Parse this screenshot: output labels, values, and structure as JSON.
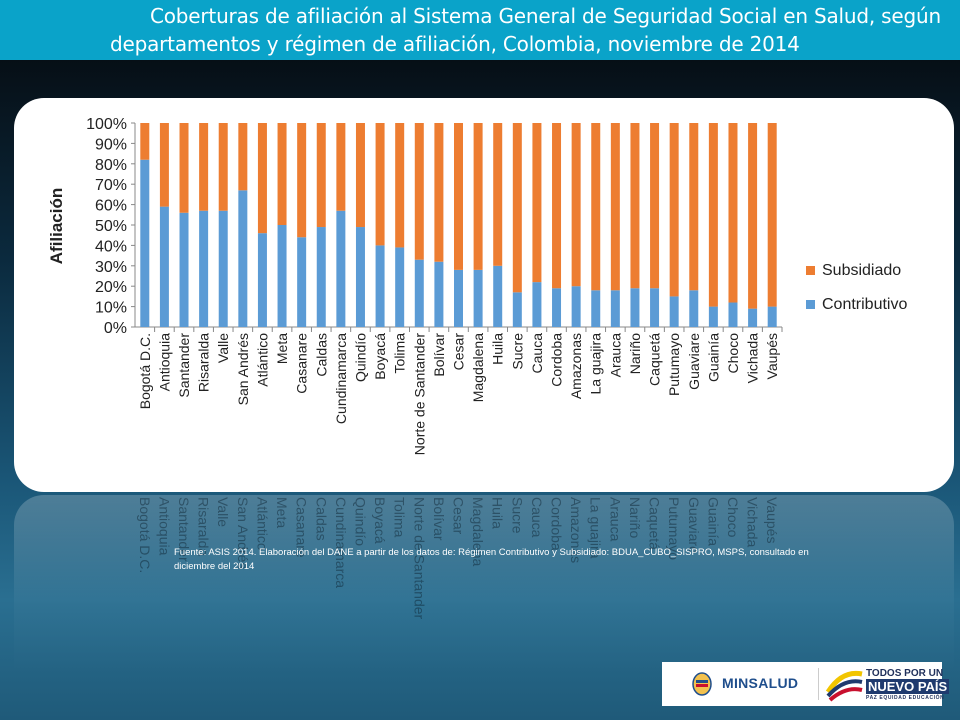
{
  "header": {
    "title_line1": "Coberturas de afiliación al Sistema General de Seguridad Social en Salud, según",
    "title_line2": "departamentos y régimen de afiliación, Colombia, noviembre de 2014"
  },
  "source_note": "Fuente: ASIS 2014. Elaboración del DANE a partir de los datos de: Régimen Contributivo y Subsidiado: BDUA_CUBO_SISPRO, MSPS, consultado en diciembre del 2014",
  "logos": {
    "minsalud": "MINSALUD",
    "todos_line1": "TODOS POR UN",
    "todos_line2": "NUEVO PAÍS",
    "todos_line3": "PAZ  EQUIDAD  EDUCACIÓN"
  },
  "colors": {
    "contributivo": "#5b9bd5",
    "subsidiado": "#ed7d31",
    "title_bar": "#0aa3c9"
  },
  "chart_data": {
    "type": "bar",
    "stacked": true,
    "percent": true,
    "ylabel": "Afiliación",
    "ylim": [
      0,
      100
    ],
    "yticks": [
      "0%",
      "10%",
      "20%",
      "30%",
      "40%",
      "50%",
      "60%",
      "70%",
      "80%",
      "90%",
      "100%"
    ],
    "legend_position": "right",
    "categories": [
      "Bogotá D.C.",
      "Antioquia",
      "Santander",
      "Risaralda",
      "Valle",
      "San Andrés",
      "Atlántico",
      "Meta",
      "Casanare",
      "Caldas",
      "Cundinamarca",
      "Quindío",
      "Boyacá",
      "Tolima",
      "Norte de Santander",
      "Bolívar",
      "Cesar",
      "Magdalena",
      "Huila",
      "Sucre",
      "Cauca",
      "Cordoba",
      "Amazonas",
      "La guajira",
      "Arauca",
      "Nariño",
      "Caquetá",
      "Putumayo",
      "Guaviare",
      "Guainía",
      "Choco",
      "Vichada",
      "Vaupés"
    ],
    "series": [
      {
        "name": "Contributivo",
        "values": [
          82,
          59,
          56,
          57,
          57,
          67,
          46,
          50,
          44,
          49,
          57,
          49,
          40,
          39,
          33,
          32,
          28,
          28,
          30,
          17,
          22,
          19,
          20,
          18,
          18,
          19,
          19,
          15,
          18,
          10,
          12,
          9,
          10
        ]
      },
      {
        "name": "Subsidiado",
        "values": [
          18,
          41,
          44,
          43,
          43,
          33,
          54,
          50,
          56,
          51,
          43,
          51,
          60,
          61,
          67,
          68,
          72,
          72,
          70,
          83,
          78,
          81,
          80,
          82,
          82,
          81,
          81,
          85,
          82,
          90,
          88,
          91,
          90
        ]
      }
    ],
    "legend": [
      "Subsidiado",
      "Contributivo"
    ]
  }
}
